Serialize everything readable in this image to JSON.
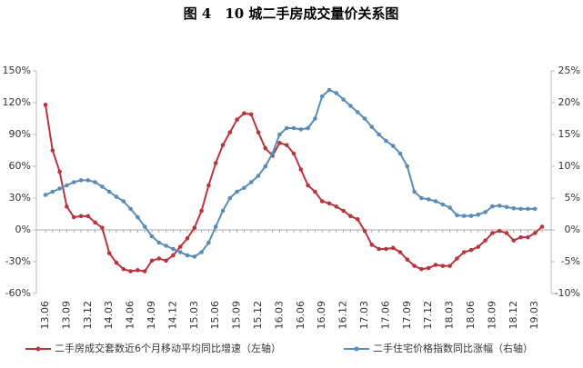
{
  "chart_data": {
    "type": "line",
    "title": "图 4　10 城二手房成交量价关系图",
    "categories": [
      "13.06",
      null,
      null,
      "13.09",
      null,
      null,
      "13.12",
      null,
      null,
      "14.03",
      null,
      null,
      "14.06",
      null,
      null,
      "14.09",
      null,
      null,
      "14.12",
      null,
      null,
      "15.03",
      null,
      null,
      "15.06",
      null,
      null,
      "15.09",
      null,
      null,
      "15.12",
      null,
      null,
      "16.03",
      null,
      null,
      "16.06",
      null,
      null,
      "16.09",
      null,
      null,
      "16.12",
      null,
      null,
      "17.03",
      null,
      null,
      "17.06",
      null,
      null,
      "17.09",
      null,
      null,
      "17.12",
      null,
      null,
      "18.03",
      null,
      null,
      "18.06",
      null,
      null,
      "18.09",
      null,
      null,
      "18.12",
      null,
      null,
      "19.03",
      null
    ],
    "series": [
      {
        "name": "二手房成交套数近6个月移动平均同比增速（左轴）",
        "color": "#b8353e",
        "axis": "y",
        "values": [
          118,
          75,
          55,
          22,
          12,
          13,
          13,
          7,
          2,
          -22,
          -31,
          -37,
          -39,
          -38,
          -39,
          -29,
          -27,
          -29,
          -24,
          -16,
          -8,
          2,
          18,
          42,
          63,
          80,
          92,
          104,
          110,
          109,
          92,
          77,
          70,
          82,
          80,
          72,
          57,
          42,
          36,
          27,
          25,
          22,
          18,
          13,
          10,
          -1,
          -14,
          -18,
          -18,
          -17,
          -21,
          -28,
          -34,
          -37,
          -36,
          -33,
          -34,
          -34,
          -27,
          -21,
          -19,
          -16,
          -10,
          -3,
          -1,
          -3,
          -10,
          -7,
          -7,
          -3,
          3
        ]
      },
      {
        "name": "二手住宅价格指数同比涨幅（右轴）",
        "color": "#5a8cb6",
        "axis": "y2",
        "values": [
          5.5,
          6,
          6.5,
          7,
          7.5,
          7.8,
          7.8,
          7.5,
          6.8,
          6,
          5.2,
          4.5,
          3.3,
          2,
          0.5,
          -1,
          -2,
          -2.5,
          -3,
          -3.5,
          -4,
          -4.2,
          -3.5,
          -2,
          0.5,
          3,
          5,
          6,
          6.6,
          7.5,
          8.5,
          10,
          12,
          15,
          16,
          16,
          15.8,
          16,
          17.5,
          21,
          22,
          21.5,
          20.5,
          19.5,
          18.5,
          17.5,
          16.2,
          15,
          14,
          13.2,
          12,
          10,
          6,
          5,
          4.8,
          4.5,
          4,
          3.5,
          2.3,
          2.2,
          2.2,
          2.4,
          2.8,
          3.7,
          3.8,
          3.6,
          3.4,
          3.3,
          3.3,
          3.3,
          null
        ]
      }
    ],
    "ylim": [
      -60,
      150
    ],
    "yticks": [
      {
        "value": -60,
        "label": "-60%"
      },
      {
        "value": -30,
        "label": "-30%"
      },
      {
        "value": 0,
        "label": "0%"
      },
      {
        "value": 30,
        "label": "30%"
      },
      {
        "value": 60,
        "label": "60%"
      },
      {
        "value": 90,
        "label": "90%"
      },
      {
        "value": 120,
        "label": "120%"
      },
      {
        "value": 150,
        "label": "150%"
      }
    ],
    "y2lim": [
      -10,
      25
    ],
    "y2ticks": [
      {
        "value": -10,
        "label": "-10%"
      },
      {
        "value": -5,
        "label": "-5%"
      },
      {
        "value": 0,
        "label": "0%"
      },
      {
        "value": 5,
        "label": "5%"
      },
      {
        "value": 10,
        "label": "10%"
      },
      {
        "value": 15,
        "label": "15%"
      },
      {
        "value": 20,
        "label": "20%"
      },
      {
        "value": 25,
        "label": "25%"
      }
    ],
    "grid": false,
    "legend": "bottom"
  }
}
